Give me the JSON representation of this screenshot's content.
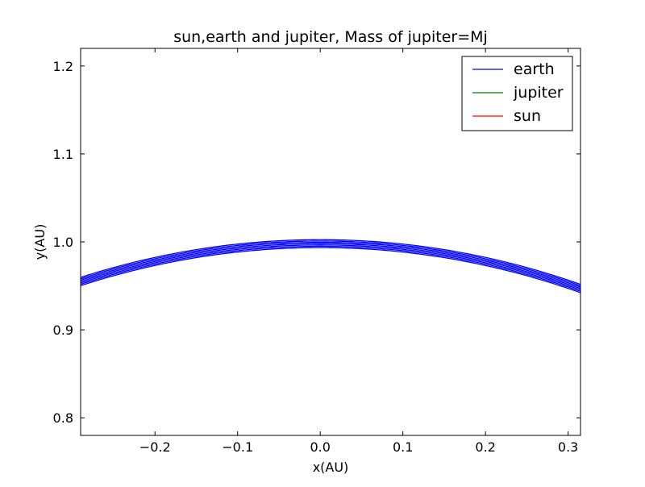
{
  "chart_data": {
    "type": "line",
    "title": "sun,earth and jupiter, Mass of jupiter=Mj",
    "xlabel": "x(AU)",
    "ylabel": "y(AU)",
    "xlim": [
      -0.29,
      0.315
    ],
    "ylim": [
      0.78,
      1.22
    ],
    "xticks": [
      {
        "value": -0.2,
        "label": "−0.2"
      },
      {
        "value": -0.1,
        "label": "−0.1"
      },
      {
        "value": 0.0,
        "label": "0.0"
      },
      {
        "value": 0.1,
        "label": "0.1"
      },
      {
        "value": 0.2,
        "label": "0.2"
      },
      {
        "value": 0.3,
        "label": "0.3"
      }
    ],
    "yticks": [
      {
        "value": 0.8,
        "label": "0.8"
      },
      {
        "value": 0.9,
        "label": "0.9"
      },
      {
        "value": 1.0,
        "label": "1.0"
      },
      {
        "value": 1.1,
        "label": "1.1"
      },
      {
        "value": 1.2,
        "label": "1.2"
      }
    ],
    "grid": false,
    "legend_position": "top-right",
    "series": [
      {
        "name": "earth",
        "color": "#0000ff",
        "orbits": [
          {
            "radius": 0.9935,
            "center_x": 0.0
          },
          {
            "radius": 0.995,
            "center_x": 0.0
          },
          {
            "radius": 0.9965,
            "center_x": 0.0
          },
          {
            "radius": 0.998,
            "center_x": 0.0
          },
          {
            "radius": 0.9995,
            "center_x": 0.0
          },
          {
            "radius": 1.001,
            "center_x": 0.0
          },
          {
            "radius": 1.0025,
            "center_x": 0.0
          }
        ]
      },
      {
        "name": "jupiter",
        "color": "#008000",
        "orbits": []
      },
      {
        "name": "sun",
        "color": "#ff0000",
        "orbits": []
      }
    ]
  }
}
